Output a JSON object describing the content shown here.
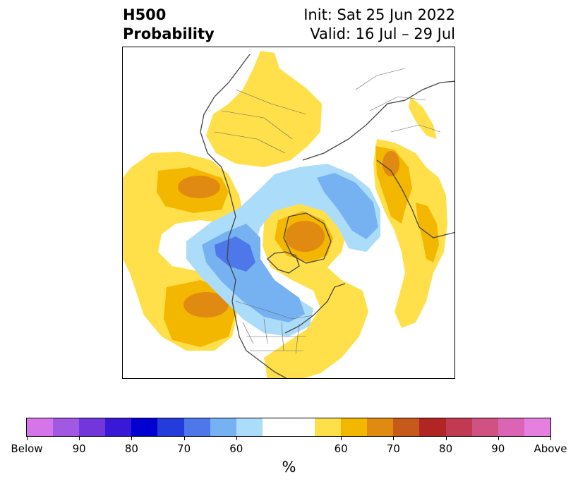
{
  "title": {
    "line1": "H500",
    "line2": "Probability",
    "init": "Init: Sat 25 Jun 2022",
    "valid": "Valid: 16 Jul – 29 Jul"
  },
  "colorbar": {
    "unit": "%",
    "colors": [
      "#d675ea",
      "#a158e2",
      "#7236da",
      "#3a19d6",
      "#0000cf",
      "#253cdc",
      "#4e77ea",
      "#76b2f2",
      "#abdcfa",
      "#ffffff",
      "#ffe04a",
      "#f3b700",
      "#e08a12",
      "#c55a1a",
      "#b22525",
      "#c23a52",
      "#cf5282",
      "#dc64b5",
      "#e680e0"
    ],
    "tick_labels": [
      "Below",
      "90",
      "80",
      "70",
      "60",
      "60",
      "70",
      "80",
      "90",
      "Above"
    ]
  },
  "map": {
    "projection": "north polar stereographic",
    "colors": {
      "prob_60": "#ffe04a",
      "prob_65": "#f3b700",
      "prob_70": "#e08a12",
      "below_60": "#abdcfa",
      "below_65": "#76b2f2",
      "below_70": "#4e77ea",
      "coast": "#444444"
    }
  }
}
